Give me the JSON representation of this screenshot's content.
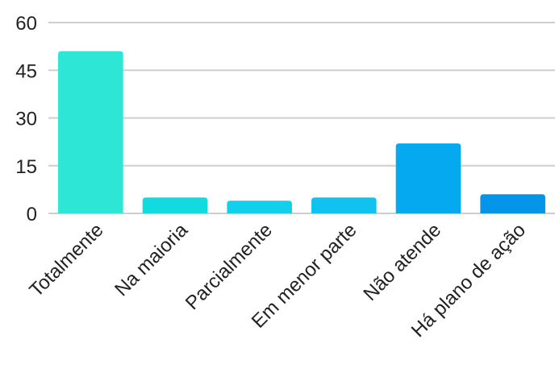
{
  "chart_data": {
    "type": "bar",
    "title": "",
    "xlabel": "",
    "ylabel": "",
    "ylim": [
      0,
      60
    ],
    "yticks": [
      0,
      15,
      30,
      45,
      60
    ],
    "grid": true,
    "categories": [
      "Totalmente",
      "Na maioria",
      "Parcialmente",
      "Em menor parte",
      "Não atende",
      "Há plano de ação"
    ],
    "values": [
      51,
      5,
      4,
      5,
      22,
      6
    ],
    "colors": [
      "#2ee6d6",
      "#12dbe0",
      "#12d0ea",
      "#10c2ef",
      "#04a9ef",
      "#0494e8"
    ]
  }
}
